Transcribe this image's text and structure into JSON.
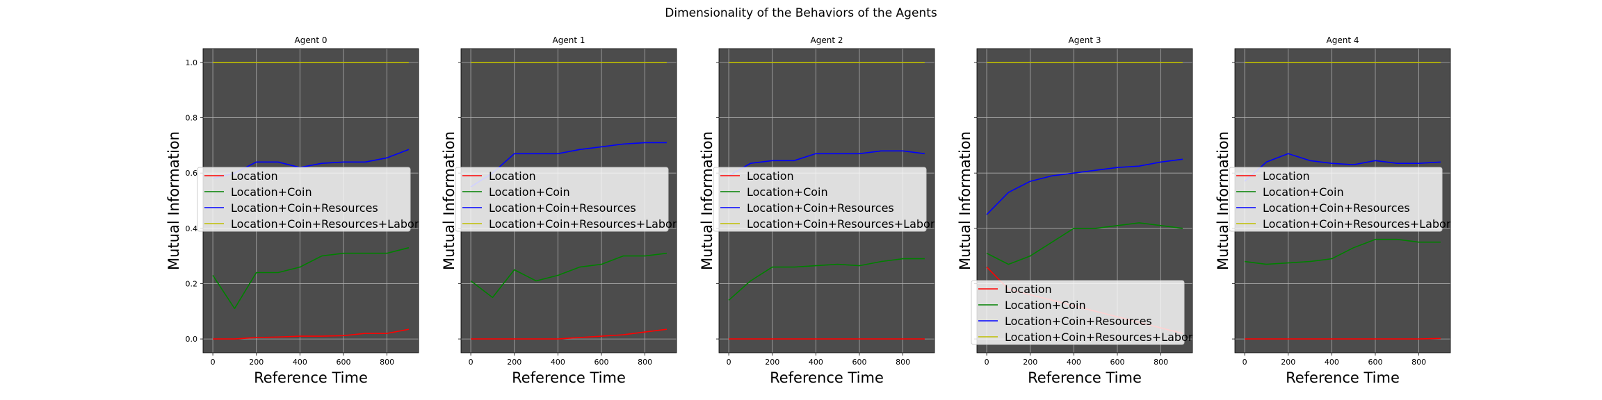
{
  "figure": {
    "title": "Dimensionality of the Behaviors of the Agents",
    "xlabel": "Reference Time",
    "ylabel": "Mutual Information",
    "axes_facecolor": "#4c4c4c",
    "grid_color": "#b0b0b0"
  },
  "legend_labels": [
    "Location",
    "Location+Coin",
    "Location+Coin+Resources",
    "Location+Coin+Resources+Labor"
  ],
  "series_colors": [
    "#ff0000",
    "#008000",
    "#0000ff",
    "#bfbf00"
  ],
  "chart_data": [
    {
      "type": "line",
      "title": "Agent 0",
      "x": [
        0,
        100,
        200,
        300,
        400,
        500,
        600,
        700,
        800,
        900
      ],
      "xlim": [
        -45,
        945
      ],
      "ylim": [
        -0.05,
        1.05
      ],
      "xticks": [
        "0",
        "200",
        "400",
        "600",
        "800"
      ],
      "yticks": [
        "0.0",
        "0.2",
        "0.4",
        "0.6",
        "0.8",
        "1.0"
      ],
      "grid": true,
      "legend_position": "center-left",
      "series": [
        {
          "name": "Location",
          "values": [
            0.0,
            0.0,
            0.005,
            0.007,
            0.01,
            0.01,
            0.012,
            0.02,
            0.02,
            0.035
          ]
        },
        {
          "name": "Location+Coin",
          "values": [
            0.23,
            0.11,
            0.24,
            0.24,
            0.26,
            0.3,
            0.31,
            0.31,
            0.31,
            0.33
          ]
        },
        {
          "name": "Location+Coin+Resources",
          "values": [
            0.58,
            0.6,
            0.64,
            0.64,
            0.62,
            0.635,
            0.64,
            0.64,
            0.655,
            0.685
          ]
        },
        {
          "name": "Location+Coin+Resources+Labor",
          "values": [
            1.0,
            1.0,
            1.0,
            1.0,
            1.0,
            1.0,
            1.0,
            1.0,
            1.0,
            1.0
          ]
        }
      ]
    },
    {
      "type": "line",
      "title": "Agent 1",
      "x": [
        0,
        100,
        200,
        300,
        400,
        500,
        600,
        700,
        800,
        900
      ],
      "xlim": [
        -45,
        945
      ],
      "ylim": [
        -0.05,
        1.05
      ],
      "xticks": [
        "0",
        "200",
        "400",
        "600",
        "800"
      ],
      "yticks": [],
      "grid": true,
      "legend_position": "center-left",
      "series": [
        {
          "name": "Location",
          "values": [
            0.0,
            0.0,
            0.0,
            0.0,
            0.0,
            0.005,
            0.01,
            0.015,
            0.025,
            0.035
          ]
        },
        {
          "name": "Location+Coin",
          "values": [
            0.21,
            0.15,
            0.25,
            0.21,
            0.23,
            0.26,
            0.27,
            0.3,
            0.3,
            0.31
          ]
        },
        {
          "name": "Location+Coin+Resources",
          "values": [
            0.55,
            0.6,
            0.67,
            0.67,
            0.67,
            0.685,
            0.695,
            0.705,
            0.71,
            0.71
          ]
        },
        {
          "name": "Location+Coin+Resources+Labor",
          "values": [
            1.0,
            1.0,
            1.0,
            1.0,
            1.0,
            1.0,
            1.0,
            1.0,
            1.0,
            1.0
          ]
        }
      ]
    },
    {
      "type": "line",
      "title": "Agent 2",
      "x": [
        0,
        100,
        200,
        300,
        400,
        500,
        600,
        700,
        800,
        900
      ],
      "xlim": [
        -45,
        945
      ],
      "ylim": [
        -0.05,
        1.05
      ],
      "xticks": [
        "0",
        "200",
        "400",
        "600",
        "800"
      ],
      "yticks": [],
      "grid": true,
      "legend_position": "center-left",
      "series": [
        {
          "name": "Location",
          "values": [
            0.0,
            0.0,
            0.0,
            0.0,
            0.0,
            0.0,
            0.0,
            0.0,
            0.0,
            0.0
          ]
        },
        {
          "name": "Location+Coin",
          "values": [
            0.14,
            0.21,
            0.26,
            0.26,
            0.265,
            0.27,
            0.265,
            0.28,
            0.29,
            0.29
          ]
        },
        {
          "name": "Location+Coin+Resources",
          "values": [
            0.59,
            0.635,
            0.645,
            0.645,
            0.67,
            0.67,
            0.67,
            0.68,
            0.68,
            0.67
          ]
        },
        {
          "name": "Location+Coin+Resources+Labor",
          "values": [
            1.0,
            1.0,
            1.0,
            1.0,
            1.0,
            1.0,
            1.0,
            1.0,
            1.0,
            1.0
          ]
        }
      ]
    },
    {
      "type": "line",
      "title": "Agent 3",
      "x": [
        0,
        100,
        200,
        300,
        400,
        500,
        600,
        700,
        800,
        900
      ],
      "xlim": [
        -45,
        945
      ],
      "ylim": [
        -0.05,
        1.05
      ],
      "xticks": [
        "0",
        "200",
        "400",
        "600",
        "800"
      ],
      "yticks": [],
      "grid": true,
      "legend_position": "lower-left",
      "series": [
        {
          "name": "Location",
          "values": [
            0.26,
            0.18,
            0.16,
            0.14,
            0.12,
            0.1,
            0.08,
            0.06,
            0.04,
            0.02
          ]
        },
        {
          "name": "Location+Coin",
          "values": [
            0.31,
            0.27,
            0.3,
            0.35,
            0.4,
            0.4,
            0.41,
            0.42,
            0.41,
            0.4
          ]
        },
        {
          "name": "Location+Coin+Resources",
          "values": [
            0.45,
            0.53,
            0.57,
            0.59,
            0.6,
            0.61,
            0.62,
            0.625,
            0.64,
            0.65
          ]
        },
        {
          "name": "Location+Coin+Resources+Labor",
          "values": [
            1.0,
            1.0,
            1.0,
            1.0,
            1.0,
            1.0,
            1.0,
            1.0,
            1.0,
            1.0
          ]
        }
      ]
    },
    {
      "type": "line",
      "title": "Agent 4",
      "x": [
        0,
        100,
        200,
        300,
        400,
        500,
        600,
        700,
        800,
        900
      ],
      "xlim": [
        -45,
        945
      ],
      "ylim": [
        -0.05,
        1.05
      ],
      "xticks": [
        "0",
        "200",
        "400",
        "600",
        "800"
      ],
      "yticks": [],
      "grid": true,
      "legend_position": "center-left",
      "series": [
        {
          "name": "Location",
          "values": [
            0.0,
            0.0,
            0.0,
            0.0,
            0.0,
            0.0,
            0.0,
            0.0,
            0.0,
            0.002
          ]
        },
        {
          "name": "Location+Coin",
          "values": [
            0.28,
            0.27,
            0.275,
            0.28,
            0.29,
            0.33,
            0.36,
            0.36,
            0.35,
            0.35
          ]
        },
        {
          "name": "Location+Coin+Resources",
          "values": [
            0.57,
            0.64,
            0.67,
            0.645,
            0.635,
            0.63,
            0.645,
            0.635,
            0.635,
            0.64
          ]
        },
        {
          "name": "Location+Coin+Resources+Labor",
          "values": [
            1.0,
            1.0,
            1.0,
            1.0,
            1.0,
            1.0,
            1.0,
            1.0,
            1.0,
            1.0
          ]
        }
      ]
    }
  ]
}
